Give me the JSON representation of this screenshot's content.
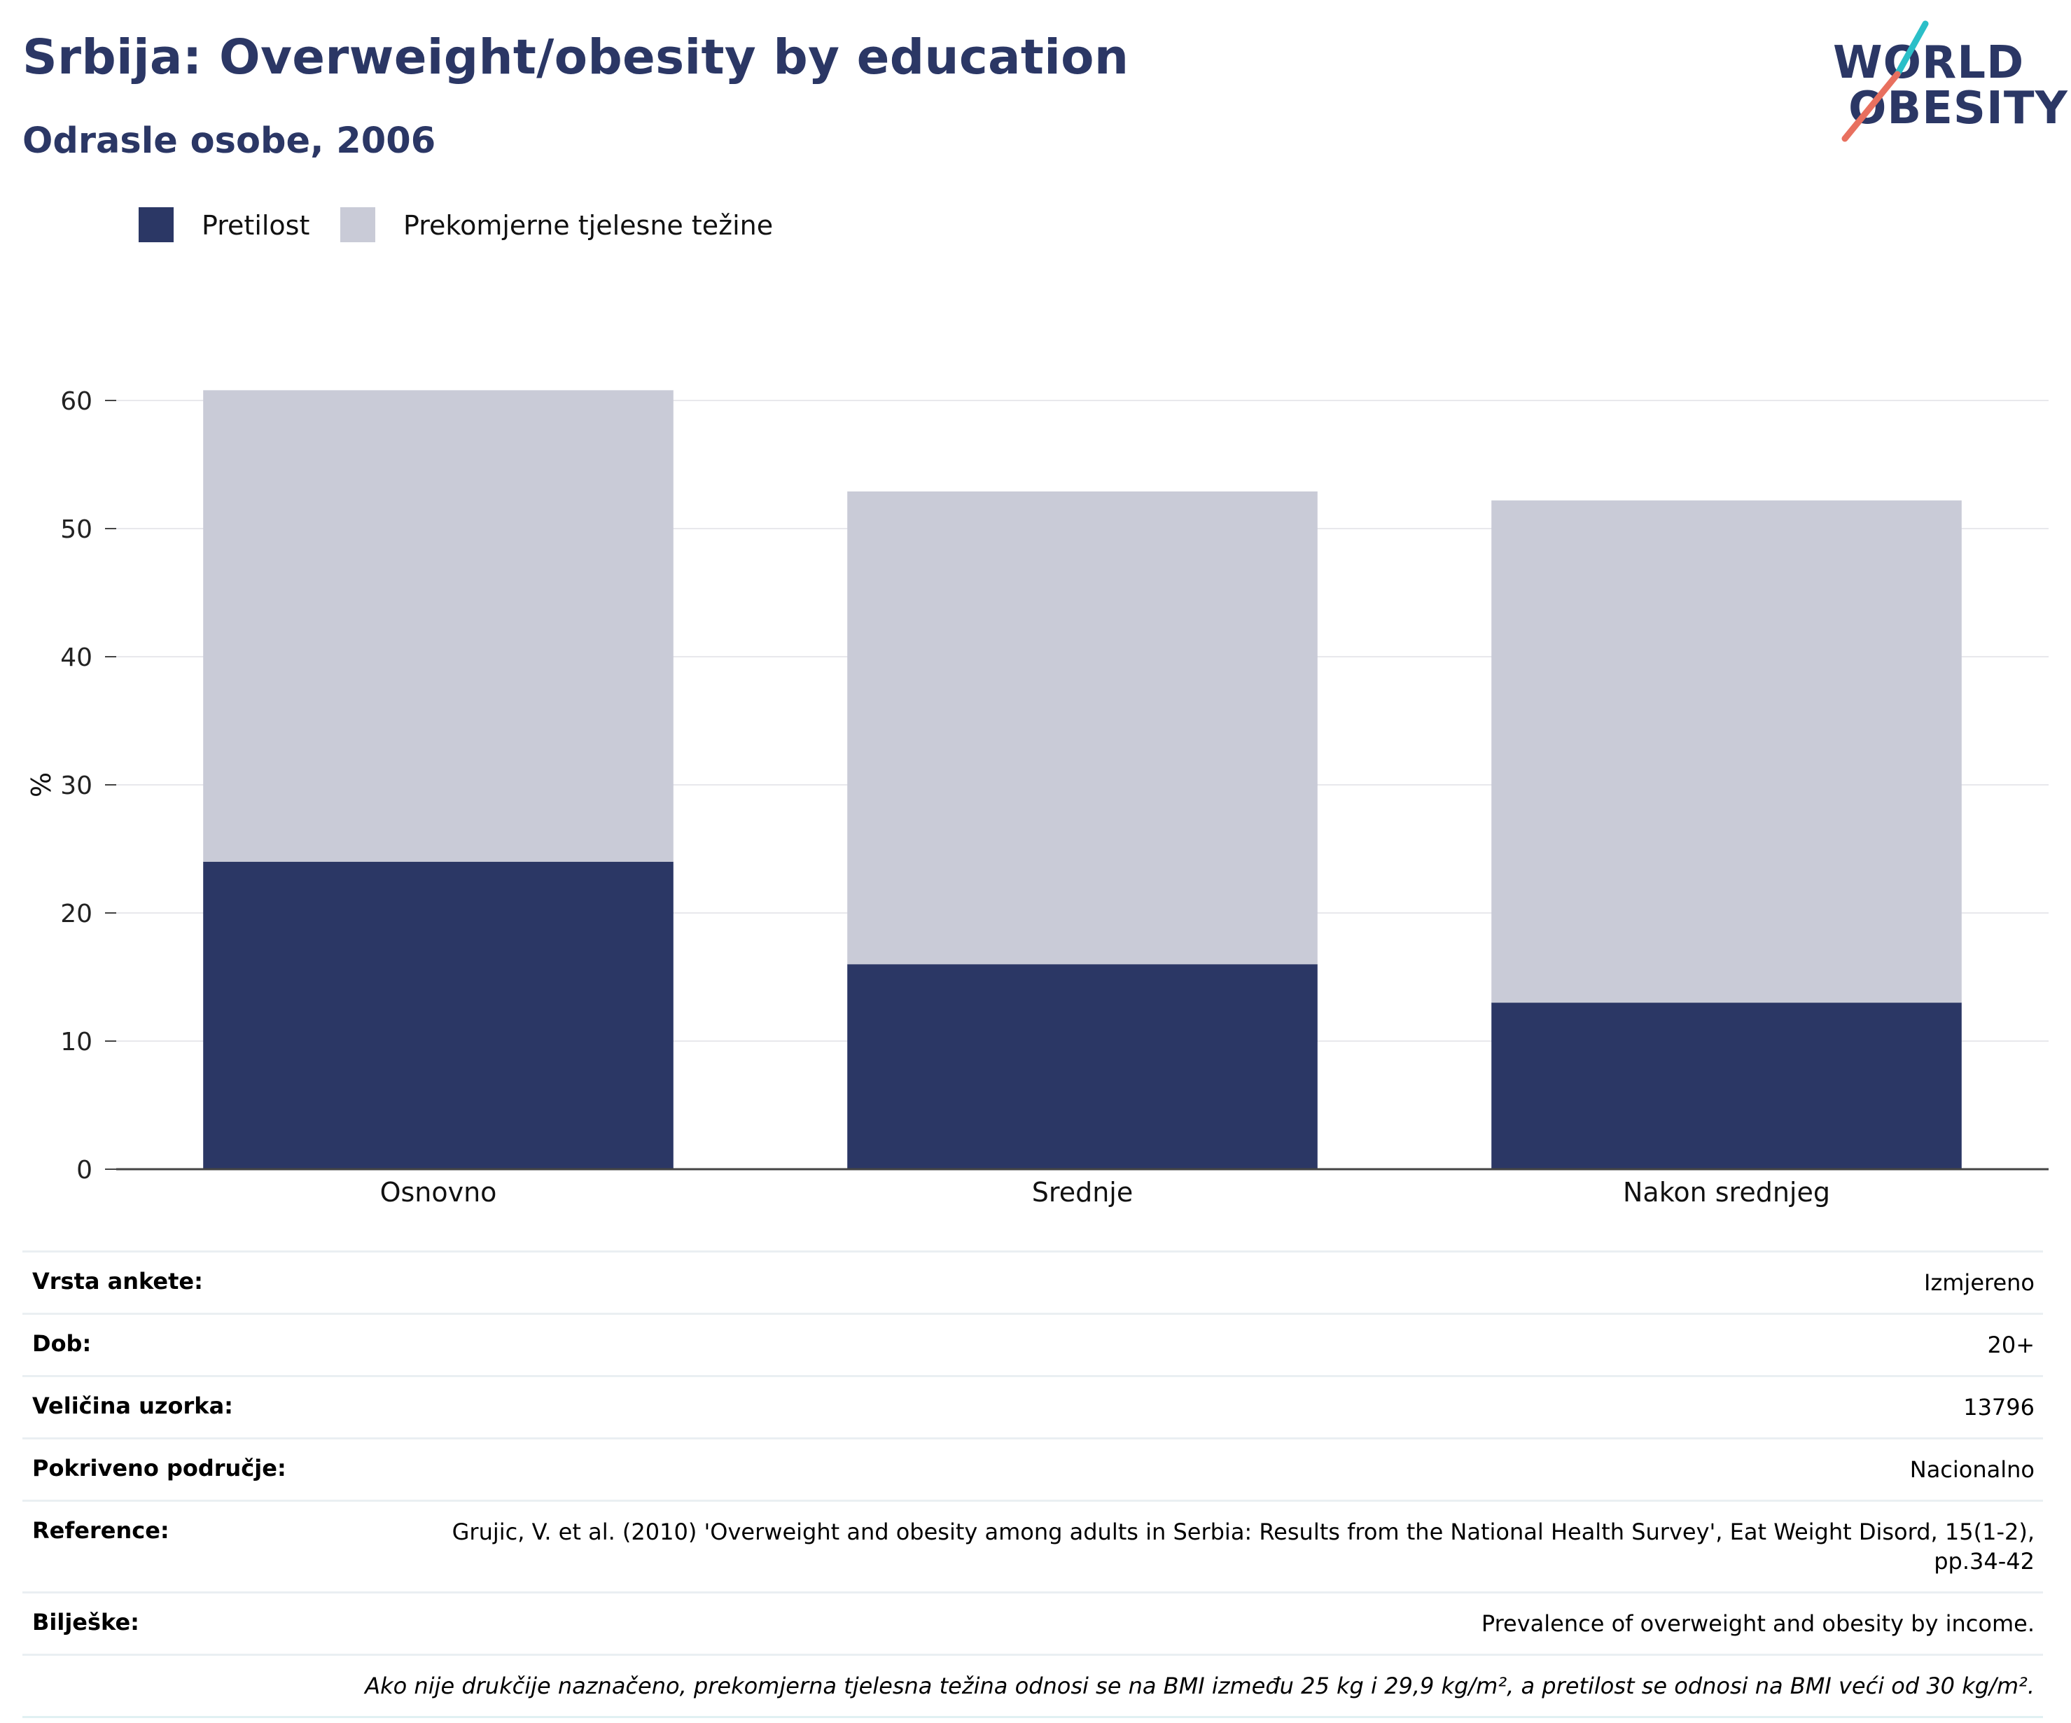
{
  "header": {
    "title": "Srbija: Overweight/obesity by education",
    "subtitle": "Odrasle osobe, 2006"
  },
  "logo": {
    "line1": "WORLD",
    "line2": "OBESITY",
    "accent_teal": "#2bbfc8",
    "accent_coral": "#e8705f"
  },
  "colors": {
    "obesity": "#2b3765",
    "overweight": "#c9cbd7",
    "text": "#2b3765"
  },
  "legend": [
    {
      "label": "Pretilost",
      "color": "#2b3765"
    },
    {
      "label": "Prekomjerne tjelesne težine",
      "color": "#c9cbd7"
    }
  ],
  "chart_data": {
    "type": "bar",
    "stacked": true,
    "categories": [
      "Osnovno",
      "Srednje",
      "Nakon srednjeg"
    ],
    "series": [
      {
        "name": "Pretilost",
        "values": [
          24,
          16,
          13
        ],
        "color": "#2b3765"
      },
      {
        "name": "Prekomjerne tjelesne težine",
        "values": [
          36.8,
          36.9,
          39.2
        ],
        "color": "#c9cbd7"
      }
    ],
    "ylabel": "%",
    "ylim": [
      0,
      60
    ],
    "yticks": [
      "0",
      "10",
      "20",
      "30",
      "40",
      "50",
      "60"
    ],
    "grid": true
  },
  "meta": [
    {
      "key": "Vrsta ankete:",
      "value": "Izmjereno"
    },
    {
      "key": "Dob:",
      "value": "20+"
    },
    {
      "key": "Veličina uzorka:",
      "value": "13796"
    },
    {
      "key": "Pokriveno područje:",
      "value": "Nacionalno"
    },
    {
      "key": "Reference:",
      "value": "Grujic, V. et al. (2010) 'Overweight and obesity among adults in Serbia: Results from the National Health Survey', Eat Weight Disord, 15(1-2), pp.34-42"
    },
    {
      "key": "Bilješke:",
      "value": "Prevalence of overweight and obesity by income."
    }
  ],
  "footnote": "Ako nije drukčije naznačeno, prekomjerna tjelesna težina odnosi se na BMI između 25 kg i 29,9 kg/m², a pretilost se odnosi na BMI veći od 30 kg/m²."
}
